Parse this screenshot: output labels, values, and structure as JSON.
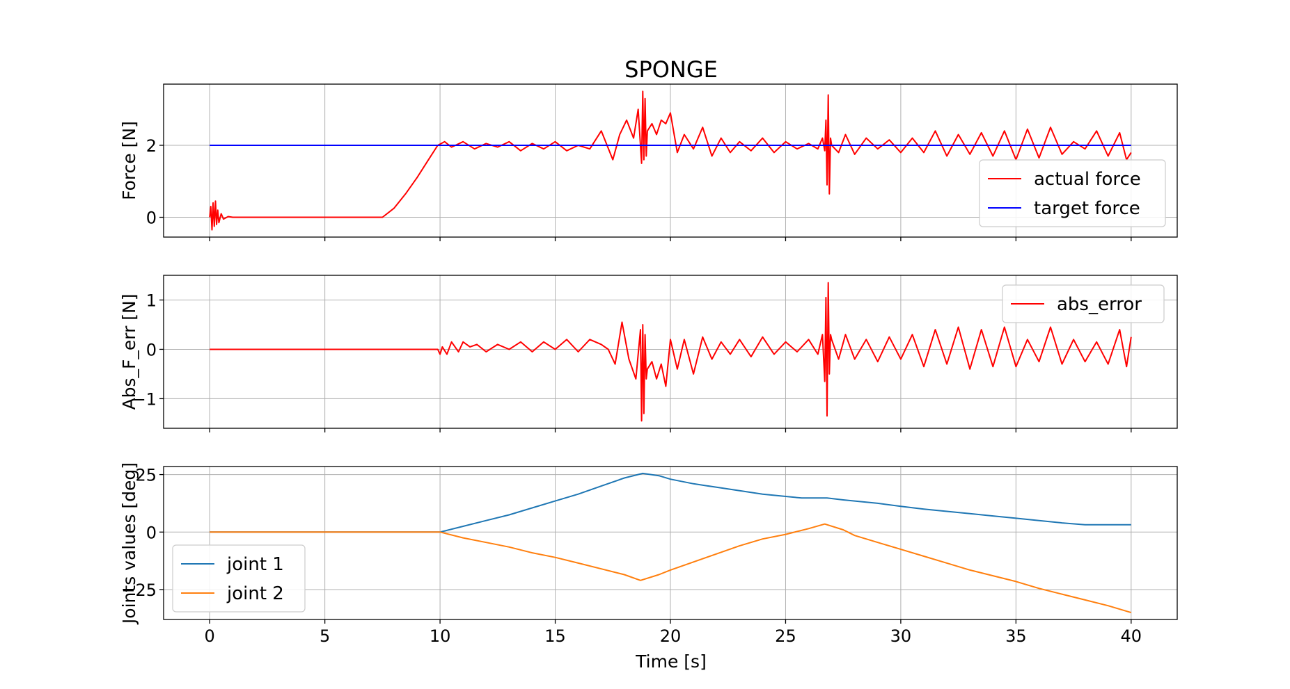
{
  "figure": {
    "title": "SPONGE",
    "xlabel": "Time [s]",
    "xticks": [
      0,
      5,
      10,
      15,
      20,
      25,
      30,
      35,
      40
    ],
    "xlim": [
      -2,
      42
    ]
  },
  "chart_data": [
    {
      "type": "line",
      "title": "SPONGE",
      "xlabel": "",
      "ylabel": "Force [N]",
      "xlim": [
        -2,
        42
      ],
      "ylim": [
        -0.55,
        3.7
      ],
      "yticks": [
        0,
        2
      ],
      "grid": true,
      "legend": "lower right",
      "series": [
        {
          "name": "actual force",
          "color": "#ff0000",
          "x": [
            0,
            0.05,
            0.1,
            0.15,
            0.2,
            0.25,
            0.3,
            0.35,
            0.4,
            0.5,
            0.6,
            0.8,
            1.0,
            2,
            4,
            6,
            7.5,
            8.0,
            8.5,
            9.0,
            9.5,
            9.9,
            10.2,
            10.5,
            11.0,
            11.5,
            12.0,
            12.5,
            13.0,
            13.5,
            14.0,
            14.5,
            15.0,
            15.5,
            16.0,
            16.5,
            17.0,
            17.5,
            17.8,
            18.1,
            18.4,
            18.6,
            18.75,
            18.8,
            18.85,
            18.9,
            18.95,
            19.0,
            19.2,
            19.4,
            19.6,
            19.8,
            20.0,
            20.3,
            20.6,
            21.0,
            21.4,
            21.8,
            22.2,
            22.6,
            23.0,
            23.5,
            24.0,
            24.5,
            25.0,
            25.5,
            26.0,
            26.4,
            26.6,
            26.7,
            26.75,
            26.8,
            26.85,
            26.9,
            26.95,
            27.0,
            27.3,
            27.6,
            28.0,
            28.5,
            29.0,
            29.5,
            30.0,
            30.5,
            31.0,
            31.5,
            32.0,
            32.5,
            33.0,
            33.5,
            34.0,
            34.5,
            35.0,
            35.5,
            36.0,
            36.5,
            37.0,
            37.5,
            38.0,
            38.5,
            39.0,
            39.5,
            39.8,
            40.0
          ],
          "y": [
            0,
            0.3,
            -0.35,
            0.4,
            -0.25,
            0.45,
            -0.2,
            0.2,
            -0.15,
            0.1,
            -0.05,
            0.02,
            0,
            0,
            0,
            0,
            0,
            0.25,
            0.65,
            1.1,
            1.6,
            2.0,
            2.1,
            1.95,
            2.1,
            1.9,
            2.05,
            1.95,
            2.1,
            1.85,
            2.05,
            1.9,
            2.1,
            1.85,
            2.0,
            1.9,
            2.4,
            1.6,
            2.3,
            2.7,
            2.2,
            3.0,
            1.5,
            3.5,
            1.6,
            3.3,
            1.7,
            2.4,
            2.6,
            2.3,
            2.7,
            2.6,
            2.9,
            1.8,
            2.3,
            1.9,
            2.5,
            1.7,
            2.2,
            1.8,
            2.1,
            1.85,
            2.2,
            1.8,
            2.1,
            1.9,
            2.05,
            1.9,
            2.2,
            1.85,
            2.7,
            0.9,
            3.4,
            0.65,
            2.2,
            2.0,
            1.8,
            2.3,
            1.75,
            2.2,
            1.9,
            2.15,
            1.8,
            2.2,
            1.8,
            2.4,
            1.7,
            2.3,
            1.75,
            2.35,
            1.7,
            2.4,
            1.6,
            2.45,
            1.65,
            2.5,
            1.75,
            2.1,
            1.9,
            2.4,
            1.7,
            2.35,
            1.6,
            1.8
          ]
        },
        {
          "name": "target force",
          "color": "#0000ff",
          "x": [
            0,
            40
          ],
          "y": [
            2,
            2
          ]
        }
      ]
    },
    {
      "type": "line",
      "xlabel": "",
      "ylabel": "Abs_F_err [N]",
      "xlim": [
        -2,
        42
      ],
      "ylim": [
        -1.6,
        1.5
      ],
      "yticks": [
        1,
        0,
        -1
      ],
      "ytick_labels": [
        "1",
        "0",
        "−1"
      ],
      "grid": true,
      "legend": "upper right",
      "series": [
        {
          "name": "abs_error",
          "color": "#ff0000",
          "x": [
            0,
            9.9,
            10.0,
            10.1,
            10.3,
            10.5,
            10.8,
            11.0,
            11.3,
            11.6,
            12.0,
            12.5,
            13.0,
            13.5,
            14.0,
            14.5,
            15.0,
            15.5,
            16.0,
            16.5,
            17.0,
            17.3,
            17.6,
            17.9,
            18.2,
            18.5,
            18.7,
            18.75,
            18.8,
            18.85,
            18.9,
            18.95,
            19.0,
            19.2,
            19.4,
            19.6,
            19.8,
            20.0,
            20.3,
            20.6,
            21.0,
            21.4,
            21.8,
            22.2,
            22.6,
            23.0,
            23.5,
            24.0,
            24.5,
            25.0,
            25.5,
            26.0,
            26.4,
            26.6,
            26.7,
            26.75,
            26.8,
            26.85,
            26.9,
            26.95,
            27.0,
            27.3,
            27.6,
            28.0,
            28.5,
            29.0,
            29.5,
            30.0,
            30.5,
            31.0,
            31.5,
            32.0,
            32.5,
            33.0,
            33.5,
            34.0,
            34.5,
            35.0,
            35.5,
            36.0,
            36.5,
            37.0,
            37.5,
            38.0,
            38.5,
            39.0,
            39.5,
            39.8,
            40.0
          ],
          "y": [
            0,
            0,
            -0.1,
            0.05,
            -0.1,
            0.15,
            -0.05,
            0.15,
            0.05,
            0.1,
            -0.05,
            0.1,
            0.0,
            0.15,
            -0.05,
            0.15,
            0.0,
            0.2,
            -0.05,
            0.2,
            0.1,
            0.0,
            -0.3,
            0.55,
            -0.2,
            -0.6,
            0.4,
            -1.45,
            0.5,
            -1.3,
            0.3,
            -0.6,
            -0.4,
            -0.25,
            -0.6,
            -0.3,
            -0.75,
            0.2,
            -0.4,
            0.2,
            -0.5,
            0.25,
            -0.2,
            0.15,
            -0.1,
            0.2,
            -0.15,
            0.25,
            -0.1,
            0.15,
            -0.05,
            0.2,
            -0.1,
            0.3,
            -0.65,
            1.05,
            -1.35,
            1.35,
            -0.5,
            0.3,
            0.2,
            -0.2,
            0.3,
            -0.2,
            0.2,
            -0.25,
            0.25,
            -0.2,
            0.3,
            -0.35,
            0.4,
            -0.3,
            0.45,
            -0.4,
            0.4,
            -0.35,
            0.45,
            -0.35,
            0.2,
            -0.25,
            0.45,
            -0.3,
            0.2,
            -0.25,
            0.15,
            -0.3,
            0.4,
            -0.35,
            0.25
          ]
        }
      ]
    },
    {
      "type": "line",
      "xlabel": "Time [s]",
      "ylabel": "Joints values [deg]",
      "xlim": [
        -2,
        42
      ],
      "ylim": [
        -38,
        28.5
      ],
      "yticks": [
        25,
        0,
        -25
      ],
      "ytick_labels": [
        "25",
        "0",
        "−25"
      ],
      "grid": true,
      "legend": "lower left",
      "series": [
        {
          "name": "joint 1",
          "color": "#1f77b4",
          "x": [
            0,
            10,
            11,
            12,
            13,
            14,
            15,
            16,
            17,
            18,
            18.8,
            19.5,
            20,
            21,
            22,
            23,
            24,
            25,
            25.7,
            26.8,
            27.5,
            28,
            29,
            30,
            31,
            32,
            33,
            34,
            35,
            36,
            37,
            38,
            40
          ],
          "y": [
            0,
            0,
            2.5,
            5,
            7.5,
            10.5,
            13.5,
            16.5,
            20,
            23.5,
            25.5,
            24.5,
            23,
            21,
            19.5,
            18,
            16.5,
            15.5,
            14.8,
            14.8,
            14,
            13.5,
            12.5,
            11.2,
            10,
            9,
            8,
            7,
            6,
            5,
            4,
            3.2,
            3.2
          ]
        },
        {
          "name": "joint 2",
          "color": "#ff7f0e",
          "x": [
            0,
            10,
            11,
            12,
            13,
            14,
            15,
            16,
            17,
            18,
            18.7,
            19.5,
            20,
            21,
            22,
            23,
            24,
            25,
            26,
            26.7,
            27.5,
            28,
            29,
            30,
            31,
            32,
            33,
            34,
            35,
            36,
            37,
            38,
            39,
            40
          ],
          "y": [
            0,
            0,
            -2.5,
            -4.5,
            -6.5,
            -9,
            -11,
            -13.5,
            -16,
            -18.5,
            -21,
            -18.5,
            -16.5,
            -13,
            -9.5,
            -6,
            -3,
            -1,
            1.5,
            3.5,
            1,
            -1.5,
            -4.5,
            -7.5,
            -10.5,
            -13.5,
            -16.5,
            -19,
            -21.5,
            -24.5,
            -27,
            -29.5,
            -32,
            -35
          ]
        }
      ]
    }
  ]
}
